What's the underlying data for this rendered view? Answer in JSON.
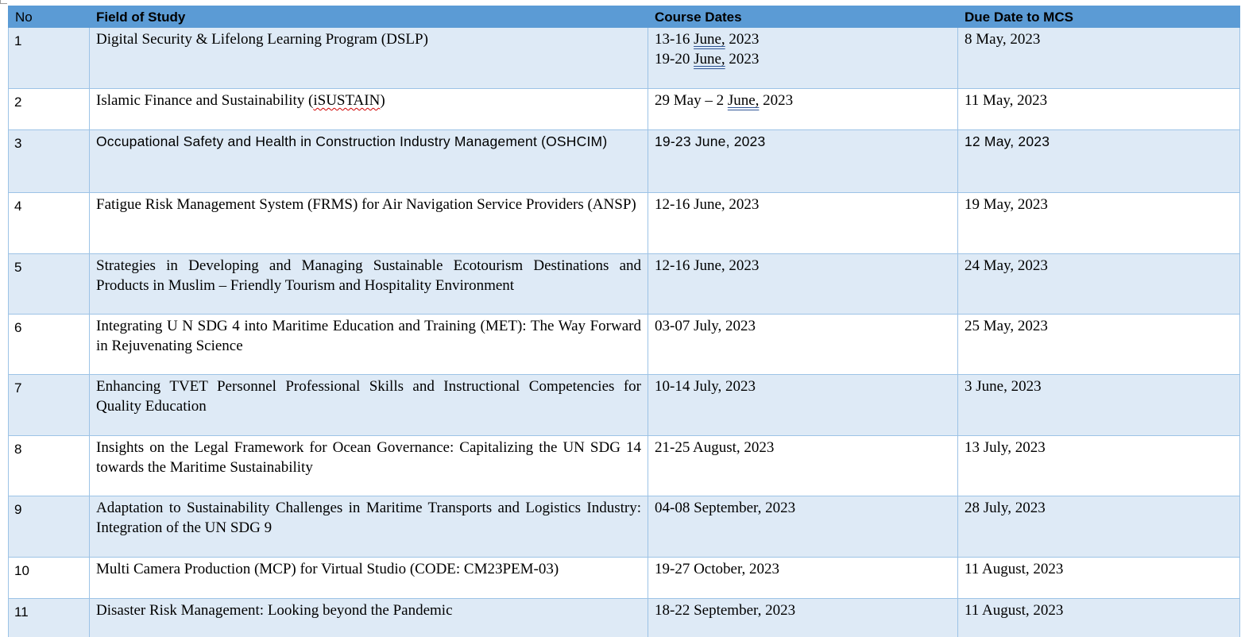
{
  "table": {
    "headers": [
      "No",
      "Field of Study",
      "Course Dates",
      "Due Date to MCS"
    ],
    "rows": [
      {
        "no": "1",
        "field": "Digital Security & Lifelong Learning Program (DSLP)",
        "dates_line1": "13-16 June, 2023",
        "dates_line2": "19-20 June, 2023",
        "due": "8 May, 2023"
      },
      {
        "no": "2",
        "field": "Islamic Finance and Sustainability (iSUSTAIN)",
        "dates": "29 May – 2 June, 2023",
        "due": "11 May, 2023"
      },
      {
        "no": "3",
        "field": "Occupational Safety and Health in Construction Industry Management (OSHCIM)",
        "dates": "19-23 June, 2023",
        "due": "12 May, 2023"
      },
      {
        "no": "4",
        "field": "Fatigue Risk Management System (FRMS) for Air Navigation Service Providers (ANSP)",
        "dates": "12-16 June, 2023",
        "due": "19 May, 2023"
      },
      {
        "no": "5",
        "field": "Strategies in Developing and Managing Sustainable Ecotourism Destinations and Products in Muslim – Friendly Tourism and Hospitality Environment",
        "dates": "12-16 June, 2023",
        "due": "24 May, 2023"
      },
      {
        "no": "6",
        "field": "Integrating U N SDG 4 into Maritime Education and Training (MET): The Way Forward in Rejuvenating Science",
        "dates": "03-07 July, 2023",
        "due": "25 May, 2023"
      },
      {
        "no": "7",
        "field": "Enhancing TVET Personnel Professional Skills and Instructional Competencies for Quality Education",
        "dates": "10-14 July, 2023",
        "due": "3 June, 2023"
      },
      {
        "no": "8",
        "field": "Insights on the Legal Framework for Ocean Governance: Capitalizing the UN SDG 14 towards the Maritime Sustainability",
        "dates": "21-25 August, 2023",
        "due": "13 July, 2023"
      },
      {
        "no": "9",
        "field": "Adaptation to Sustainability Challenges in Maritime Transports and Logistics Industry: Integration of the UN SDG 9",
        "dates": "04-08 September, 2023",
        "due": "28 July, 2023"
      },
      {
        "no": "10",
        "field": "Multi Camera Production (MCP) for Virtual Studio (CODE: CM23PEM-03)",
        "dates": "19-27 October, 2023",
        "due": "11 August, 2023"
      },
      {
        "no": "11",
        "field": "Disaster Risk Management: Looking beyond the Pandemic",
        "dates": "18-22 September, 2023",
        "due": "11 August, 2023"
      }
    ]
  },
  "colors": {
    "header_bg": "#5b9bd5",
    "band_bg": "#deeaf6",
    "grid_line": "#9dc3e6"
  }
}
